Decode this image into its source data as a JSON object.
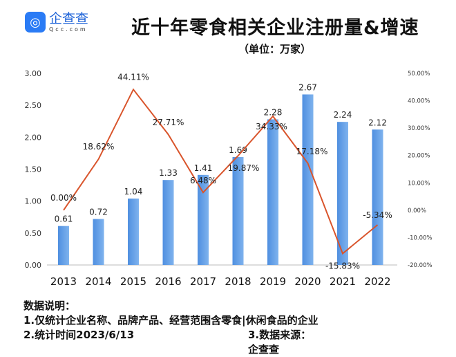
{
  "logo": {
    "name": "企查查",
    "domain": "Qcc.com",
    "brand_color": "#2a7bf5"
  },
  "chart_data": {
    "type": "bar+line",
    "title": "近十年零食相关企业注册量&增速",
    "subtitle": "（单位：万家）",
    "categories": [
      "2013",
      "2014",
      "2015",
      "2016",
      "2017",
      "2018",
      "2019",
      "2020",
      "2021",
      "2022"
    ],
    "series": [
      {
        "type": "bar",
        "axis": "left",
        "values": [
          0.61,
          0.72,
          1.04,
          1.33,
          1.41,
          1.69,
          2.28,
          2.67,
          2.24,
          2.12
        ],
        "labels": [
          "0.61",
          "0.72",
          "1.04",
          "1.33",
          "1.41",
          "1.69",
          "2.28",
          "2.67",
          "2.24",
          "2.12"
        ],
        "color": "#5b9be0"
      },
      {
        "type": "line",
        "axis": "right",
        "values": [
          0.0,
          18.62,
          44.11,
          27.71,
          6.48,
          19.87,
          34.33,
          17.18,
          -15.83,
          -5.34
        ],
        "labels": [
          "0.00%",
          "18.62%",
          "44.11%",
          "27.71%",
          "6.48%",
          "19.87%",
          "34.33%",
          "17.18%",
          "-15.83%",
          "-5.34%"
        ],
        "color": "#d9542b"
      }
    ],
    "left_axis": {
      "ylim": [
        0,
        3
      ],
      "ticks": [
        "0.00",
        "0.50",
        "1.00",
        "1.50",
        "2.00",
        "2.50",
        "3.00"
      ]
    },
    "right_axis": {
      "ylim": [
        -20,
        50
      ],
      "ticks": [
        "-20.00%",
        "-10.00%",
        "0.00%",
        "10.00%",
        "20.00%",
        "30.00%",
        "40.00%",
        "50.00%"
      ]
    },
    "grid": false
  },
  "notes": {
    "heading": "数据说明：",
    "line1": "1.仅统计企业名称、品牌产品、经营范围含零食|休闲食品的企业",
    "line2": "2.统计时间2023/6/13",
    "line3": "3.数据来源：企查查"
  }
}
